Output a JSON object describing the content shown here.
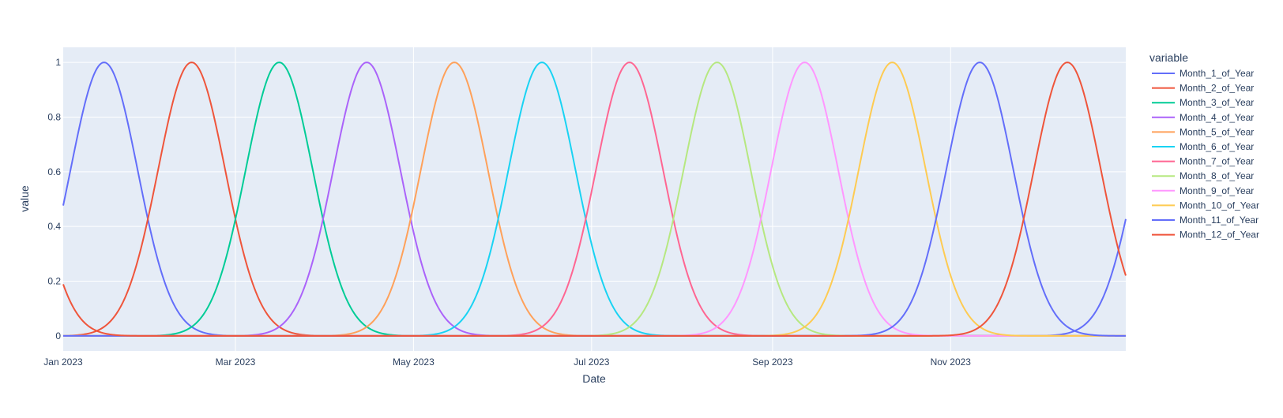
{
  "chart_data": {
    "type": "line",
    "title": "",
    "xlabel": "Date",
    "ylabel": "value",
    "legend_title": "variable",
    "legend_position": "right",
    "grid": true,
    "x_range": [
      "2023-01-01",
      "2023-12-31"
    ],
    "ylim": [
      -0.055,
      1.055
    ],
    "x_ticks": [
      {
        "date": "2023-01-01",
        "label": "Jan 2023"
      },
      {
        "date": "2023-03-01",
        "label": "Mar 2023"
      },
      {
        "date": "2023-05-01",
        "label": "May 2023"
      },
      {
        "date": "2023-07-01",
        "label": "Jul 2023"
      },
      {
        "date": "2023-09-01",
        "label": "Sep 2023"
      },
      {
        "date": "2023-11-01",
        "label": "Nov 2023"
      }
    ],
    "y_ticks": [
      {
        "value": 0,
        "label": "0"
      },
      {
        "value": 0.2,
        "label": "0.2"
      },
      {
        "value": 0.4,
        "label": "0.4"
      },
      {
        "value": 0.6,
        "label": "0.6"
      },
      {
        "value": 0.8,
        "label": "0.8"
      },
      {
        "value": 1,
        "label": "1"
      }
    ],
    "series_shape": "periodic radial basis function, value 1 at peak date",
    "series": [
      {
        "name": "Month_1_of_Year",
        "color": "#636efa",
        "peak_date": "2023-01-15"
      },
      {
        "name": "Month_2_of_Year",
        "color": "#EF553B",
        "peak_date": "2023-02-14"
      },
      {
        "name": "Month_3_of_Year",
        "color": "#00cc96",
        "peak_date": "2023-03-16"
      },
      {
        "name": "Month_4_of_Year",
        "color": "#ab63fa",
        "peak_date": "2023-04-15"
      },
      {
        "name": "Month_5_of_Year",
        "color": "#FFA15A",
        "peak_date": "2023-05-15"
      },
      {
        "name": "Month_6_of_Year",
        "color": "#19d3f3",
        "peak_date": "2023-06-14"
      },
      {
        "name": "Month_7_of_Year",
        "color": "#FF6692",
        "peak_date": "2023-07-14"
      },
      {
        "name": "Month_8_of_Year",
        "color": "#B6E880",
        "peak_date": "2023-08-13"
      },
      {
        "name": "Month_9_of_Year",
        "color": "#FF97FF",
        "peak_date": "2023-09-12"
      },
      {
        "name": "Month_10_of_Year",
        "color": "#FECB52",
        "peak_date": "2023-10-12"
      },
      {
        "name": "Month_11_of_Year",
        "color": "#636efa",
        "peak_date": "2023-11-11"
      },
      {
        "name": "Month_12_of_Year",
        "color": "#EF553B",
        "peak_date": "2023-12-11"
      }
    ]
  }
}
